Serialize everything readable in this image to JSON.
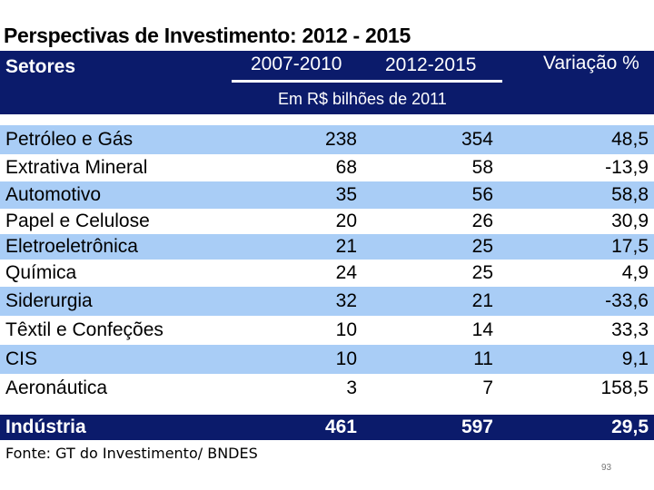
{
  "title": "Perspectivas de Investimento: 2012 - 2015",
  "header": {
    "sectors_label": "Setores",
    "period1": "2007-2010",
    "period2": "2012-2015",
    "variation": "Variação %",
    "unit": "Em R$ bilhões de 2011"
  },
  "colors": {
    "header_bg": "#0b1b6b",
    "band_blue": "#a9cdf6",
    "band_white": "#ffffff"
  },
  "rows": [
    {
      "name": "Petróleo e Gás",
      "v1": "238",
      "v2": "354",
      "var": "48,5"
    },
    {
      "name": "Extrativa Mineral",
      "v1": "68",
      "v2": "58",
      "var": "-13,9"
    },
    {
      "name": "Automotivo",
      "v1": "35",
      "v2": "56",
      "var": "58,8"
    },
    {
      "name": "Papel e Celulose",
      "v1": "20",
      "v2": "26",
      "var": "30,9"
    },
    {
      "name": "Eletroeletrônica",
      "v1": "21",
      "v2": "25",
      "var": "17,5"
    },
    {
      "name": "Química",
      "v1": "24",
      "v2": "25",
      "var": "4,9"
    },
    {
      "name": "Siderurgia",
      "v1": "32",
      "v2": "21",
      "var": "-33,6"
    },
    {
      "name": "Têxtil e Confeções",
      "v1": "10",
      "v2": "14",
      "var": "33,3"
    },
    {
      "name": "CIS",
      "v1": "10",
      "v2": "11",
      "var": "9,1"
    },
    {
      "name": "Aeronáutica",
      "v1": "3",
      "v2": "7",
      "var": "158,5"
    }
  ],
  "total": {
    "name": "Indústria",
    "v1": "461",
    "v2": "597",
    "var": "29,5"
  },
  "source": "Fonte: GT do Investimento/ BNDES",
  "page_number": "93"
}
